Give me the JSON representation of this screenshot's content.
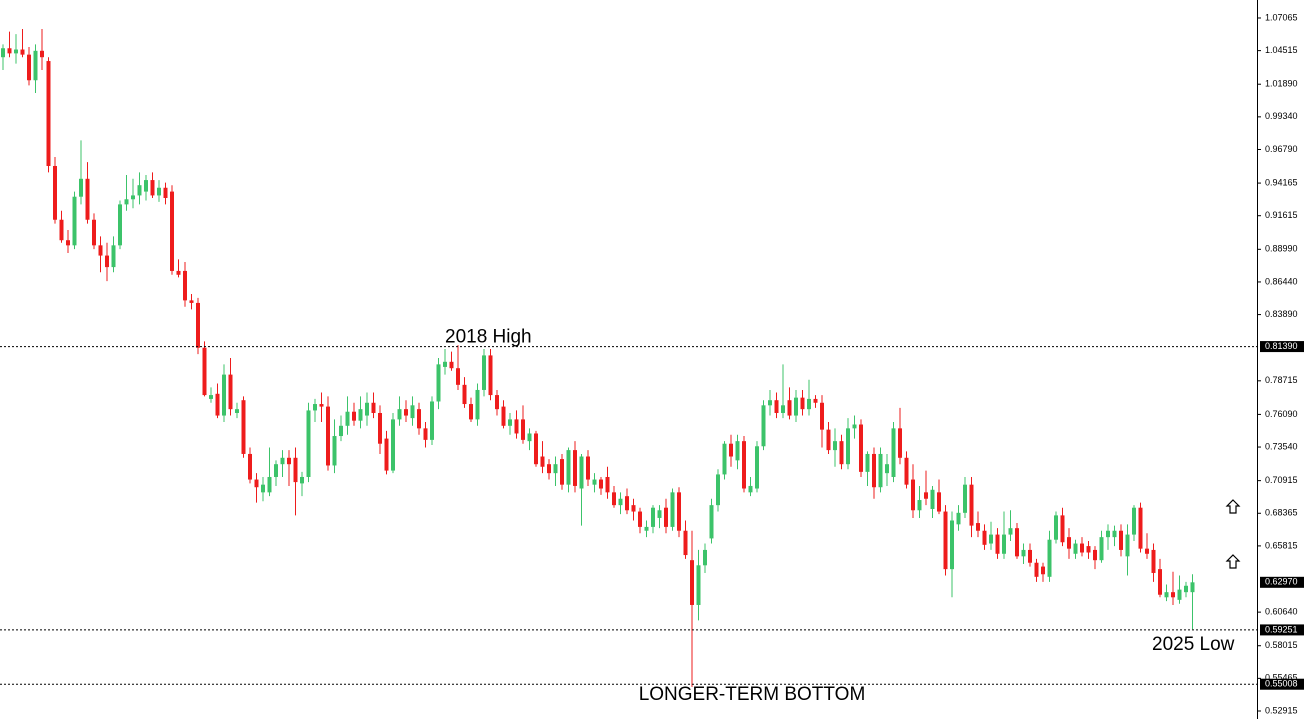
{
  "chart_data": {
    "type": "candlestick",
    "ylim": [
      0.5229,
      1.0847
    ],
    "yticks": [
      1.07065,
      1.04515,
      {
        "value": 1.0189,
        "label": "1.01890"
      },
      {
        "value": 0.9934,
        "label": "0.99340"
      },
      {
        "value": 0.9679,
        "label": "0.96790"
      },
      0.94165,
      0.91615,
      {
        "value": 0.8899,
        "label": "0.88990"
      },
      {
        "value": 0.8644,
        "label": "0.86440"
      },
      {
        "value": 0.8389,
        "label": "0.83890"
      },
      0.78715,
      {
        "value": 0.7609,
        "label": "0.76090"
      },
      {
        "value": 0.7354,
        "label": "0.73540"
      },
      0.70915,
      0.68365,
      0.65815,
      {
        "value": 0.6064,
        "label": "0.60640"
      },
      0.58015,
      0.55465,
      0.52915
    ],
    "up_color": "#3cc36a",
    "down_color": "#ee1c1c",
    "levels": [
      {
        "value": 0.8139,
        "label": "0.81390",
        "text": "2018 High"
      },
      {
        "value": 0.59251,
        "label": "0.59251",
        "text": "2025 Low"
      },
      {
        "value": 0.55008,
        "label": "0.55008",
        "text": "LONGER-TERM BOTTOM"
      }
    ],
    "last_price": {
      "value": 0.6297,
      "label": "0.62970"
    },
    "ohlc": [
      [
        1.04,
        1.05,
        1.03,
        1.047
      ],
      [
        1.047,
        1.06,
        1.04,
        1.043
      ],
      [
        1.043,
        1.058,
        1.035,
        1.046
      ],
      [
        1.046,
        1.062,
        1.04,
        1.042
      ],
      [
        1.042,
        1.048,
        1.018,
        1.022
      ],
      [
        1.022,
        1.05,
        1.012,
        1.045
      ],
      [
        1.045,
        1.062,
        1.03,
        1.04
      ],
      [
        1.037,
        1.04,
        0.95,
        0.955
      ],
      [
        0.955,
        0.962,
        0.91,
        0.913
      ],
      [
        0.913,
        0.92,
        0.895,
        0.897
      ],
      [
        0.897,
        0.905,
        0.887,
        0.893
      ],
      [
        0.893,
        0.935,
        0.89,
        0.931
      ],
      [
        0.931,
        0.975,
        0.925,
        0.945
      ],
      [
        0.945,
        0.958,
        0.91,
        0.913
      ],
      [
        0.913,
        0.918,
        0.89,
        0.893
      ],
      [
        0.893,
        0.9,
        0.872,
        0.885
      ],
      [
        0.885,
        0.895,
        0.865,
        0.876
      ],
      [
        0.876,
        0.9,
        0.872,
        0.893
      ],
      [
        0.893,
        0.928,
        0.89,
        0.925
      ],
      [
        0.925,
        0.948,
        0.92,
        0.929
      ],
      [
        0.929,
        0.945,
        0.922,
        0.932
      ],
      [
        0.932,
        0.95,
        0.925,
        0.94
      ],
      [
        0.935,
        0.948,
        0.928,
        0.944
      ],
      [
        0.944,
        0.95,
        0.93,
        0.932
      ],
      [
        0.932,
        0.944,
        0.927,
        0.938
      ],
      [
        0.938,
        0.942,
        0.925,
        0.93
      ],
      [
        0.935,
        0.94,
        0.87,
        0.873
      ],
      [
        0.873,
        0.882,
        0.868,
        0.87
      ],
      [
        0.873,
        0.88,
        0.845,
        0.85
      ],
      [
        0.85,
        0.855,
        0.843,
        0.848
      ],
      [
        0.848,
        0.852,
        0.808,
        0.813
      ],
      [
        0.813,
        0.818,
        0.775,
        0.776
      ],
      [
        0.773,
        0.782,
        0.77,
        0.776
      ],
      [
        0.777,
        0.785,
        0.758,
        0.76
      ],
      [
        0.76,
        0.8,
        0.755,
        0.792
      ],
      [
        0.792,
        0.805,
        0.76,
        0.765
      ],
      [
        0.762,
        0.77,
        0.758,
        0.765
      ],
      [
        0.772,
        0.775,
        0.727,
        0.73
      ],
      [
        0.73,
        0.735,
        0.707,
        0.71
      ],
      [
        0.71,
        0.715,
        0.692,
        0.704
      ],
      [
        0.7,
        0.712,
        0.693,
        0.706
      ],
      [
        0.7,
        0.735,
        0.697,
        0.712
      ],
      [
        0.712,
        0.725,
        0.705,
        0.722
      ],
      [
        0.722,
        0.733,
        0.712,
        0.727
      ],
      [
        0.727,
        0.733,
        0.705,
        0.722
      ],
      [
        0.727,
        0.735,
        0.682,
        0.708
      ],
      [
        0.707,
        0.716,
        0.697,
        0.712
      ],
      [
        0.712,
        0.77,
        0.708,
        0.764
      ],
      [
        0.764,
        0.773,
        0.755,
        0.769
      ],
      [
        0.769,
        0.778,
        0.755,
        0.767
      ],
      [
        0.767,
        0.775,
        0.717,
        0.721
      ],
      [
        0.721,
        0.757,
        0.715,
        0.744
      ],
      [
        0.744,
        0.76,
        0.74,
        0.752
      ],
      [
        0.752,
        0.775,
        0.745,
        0.763
      ],
      [
        0.763,
        0.77,
        0.752,
        0.756
      ],
      [
        0.756,
        0.775,
        0.75,
        0.765
      ],
      [
        0.76,
        0.778,
        0.752,
        0.77
      ],
      [
        0.77,
        0.778,
        0.758,
        0.762
      ],
      [
        0.762,
        0.768,
        0.73,
        0.738
      ],
      [
        0.742,
        0.748,
        0.714,
        0.717
      ],
      [
        0.717,
        0.762,
        0.715,
        0.757
      ],
      [
        0.757,
        0.775,
        0.752,
        0.765
      ],
      [
        0.765,
        0.772,
        0.755,
        0.76
      ],
      [
        0.758,
        0.775,
        0.752,
        0.768
      ],
      [
        0.765,
        0.77,
        0.745,
        0.75
      ],
      [
        0.75,
        0.755,
        0.735,
        0.741
      ],
      [
        0.741,
        0.775,
        0.737,
        0.771
      ],
      [
        0.771,
        0.805,
        0.765,
        0.8
      ],
      [
        0.798,
        0.812,
        0.792,
        0.802
      ],
      [
        0.802,
        0.81,
        0.795,
        0.797
      ],
      [
        0.797,
        0.815,
        0.78,
        0.784
      ],
      [
        0.784,
        0.79,
        0.766,
        0.769
      ],
      [
        0.769,
        0.774,
        0.755,
        0.757
      ],
      [
        0.757,
        0.785,
        0.752,
        0.78
      ],
      [
        0.78,
        0.812,
        0.775,
        0.807
      ],
      [
        0.807,
        0.812,
        0.772,
        0.776
      ],
      [
        0.776,
        0.78,
        0.76,
        0.765
      ],
      [
        0.767,
        0.772,
        0.75,
        0.752
      ],
      [
        0.752,
        0.762,
        0.745,
        0.757
      ],
      [
        0.757,
        0.764,
        0.742,
        0.746
      ],
      [
        0.757,
        0.768,
        0.738,
        0.741
      ],
      [
        0.74,
        0.75,
        0.733,
        0.746
      ],
      [
        0.746,
        0.748,
        0.72,
        0.722
      ],
      [
        0.728,
        0.74,
        0.715,
        0.72
      ],
      [
        0.722,
        0.726,
        0.71,
        0.715
      ],
      [
        0.715,
        0.728,
        0.705,
        0.722
      ],
      [
        0.726,
        0.73,
        0.702,
        0.706
      ],
      [
        0.706,
        0.735,
        0.7,
        0.733
      ],
      [
        0.733,
        0.74,
        0.7,
        0.705
      ],
      [
        0.703,
        0.73,
        0.674,
        0.728
      ],
      [
        0.728,
        0.733,
        0.705,
        0.71
      ],
      [
        0.706,
        0.715,
        0.7,
        0.71
      ],
      [
        0.71,
        0.712,
        0.698,
        0.703
      ],
      [
        0.712,
        0.72,
        0.695,
        0.7
      ],
      [
        0.7,
        0.705,
        0.688,
        0.69
      ],
      [
        0.69,
        0.7,
        0.683,
        0.695
      ],
      [
        0.697,
        0.703,
        0.683,
        0.686
      ],
      [
        0.69,
        0.695,
        0.678,
        0.685
      ],
      [
        0.685,
        0.688,
        0.668,
        0.673
      ],
      [
        0.67,
        0.678,
        0.665,
        0.673
      ],
      [
        0.673,
        0.69,
        0.668,
        0.688
      ],
      [
        0.68,
        0.69,
        0.672,
        0.686
      ],
      [
        0.688,
        0.695,
        0.668,
        0.673
      ],
      [
        0.673,
        0.703,
        0.67,
        0.7
      ],
      [
        0.7,
        0.704,
        0.665,
        0.67
      ],
      [
        0.67,
        0.678,
        0.648,
        0.651
      ],
      [
        0.647,
        0.67,
        0.548,
        0.612
      ],
      [
        0.612,
        0.655,
        0.6,
        0.643
      ],
      [
        0.643,
        0.66,
        0.637,
        0.655
      ],
      [
        0.664,
        0.695,
        0.66,
        0.69
      ],
      [
        0.69,
        0.718,
        0.685,
        0.714
      ],
      [
        0.714,
        0.74,
        0.71,
        0.738
      ],
      [
        0.738,
        0.745,
        0.72,
        0.728
      ],
      [
        0.725,
        0.745,
        0.718,
        0.74
      ],
      [
        0.74,
        0.744,
        0.7,
        0.703
      ],
      [
        0.7,
        0.712,
        0.697,
        0.705
      ],
      [
        0.703,
        0.74,
        0.7,
        0.736
      ],
      [
        0.736,
        0.772,
        0.733,
        0.768
      ],
      [
        0.768,
        0.78,
        0.76,
        0.772
      ],
      [
        0.772,
        0.778,
        0.758,
        0.762
      ],
      [
        0.762,
        0.8,
        0.758,
        0.768
      ],
      [
        0.772,
        0.782,
        0.757,
        0.76
      ],
      [
        0.76,
        0.78,
        0.755,
        0.774
      ],
      [
        0.774,
        0.78,
        0.76,
        0.765
      ],
      [
        0.765,
        0.788,
        0.76,
        0.773
      ],
      [
        0.773,
        0.776,
        0.766,
        0.77
      ],
      [
        0.77,
        0.776,
        0.735,
        0.749
      ],
      [
        0.749,
        0.755,
        0.73,
        0.733
      ],
      [
        0.733,
        0.75,
        0.72,
        0.74
      ],
      [
        0.74,
        0.745,
        0.718,
        0.722
      ],
      [
        0.722,
        0.758,
        0.718,
        0.75
      ],
      [
        0.75,
        0.76,
        0.742,
        0.753
      ],
      [
        0.753,
        0.757,
        0.712,
        0.716
      ],
      [
        0.716,
        0.732,
        0.705,
        0.73
      ],
      [
        0.73,
        0.735,
        0.695,
        0.704
      ],
      [
        0.704,
        0.735,
        0.7,
        0.73
      ],
      [
        0.715,
        0.73,
        0.705,
        0.722
      ],
      [
        0.712,
        0.755,
        0.708,
        0.75
      ],
      [
        0.75,
        0.766,
        0.722,
        0.727
      ],
      [
        0.727,
        0.732,
        0.703,
        0.706
      ],
      [
        0.71,
        0.722,
        0.68,
        0.686
      ],
      [
        0.686,
        0.705,
        0.68,
        0.694
      ],
      [
        0.7,
        0.717,
        0.69,
        0.695
      ],
      [
        0.687,
        0.705,
        0.68,
        0.702
      ],
      [
        0.7,
        0.71,
        0.683,
        0.685
      ],
      [
        0.685,
        0.69,
        0.635,
        0.64
      ],
      [
        0.64,
        0.685,
        0.618,
        0.678
      ],
      [
        0.675,
        0.69,
        0.67,
        0.684
      ],
      [
        0.684,
        0.712,
        0.68,
        0.706
      ],
      [
        0.706,
        0.712,
        0.665,
        0.674
      ],
      [
        0.676,
        0.685,
        0.665,
        0.67
      ],
      [
        0.67,
        0.675,
        0.655,
        0.659
      ],
      [
        0.66,
        0.677,
        0.655,
        0.667
      ],
      [
        0.667,
        0.672,
        0.648,
        0.652
      ],
      [
        0.652,
        0.685,
        0.648,
        0.667
      ],
      [
        0.667,
        0.686,
        0.662,
        0.672
      ],
      [
        0.672,
        0.676,
        0.648,
        0.65
      ],
      [
        0.65,
        0.66,
        0.644,
        0.655
      ],
      [
        0.655,
        0.66,
        0.642,
        0.645
      ],
      [
        0.645,
        0.648,
        0.63,
        0.634
      ],
      [
        0.642,
        0.645,
        0.63,
        0.636
      ],
      [
        0.634,
        0.67,
        0.63,
        0.663
      ],
      [
        0.663,
        0.685,
        0.66,
        0.682
      ],
      [
        0.682,
        0.688,
        0.658,
        0.661
      ],
      [
        0.665,
        0.672,
        0.648,
        0.656
      ],
      [
        0.652,
        0.663,
        0.648,
        0.66
      ],
      [
        0.66,
        0.665,
        0.65,
        0.653
      ],
      [
        0.658,
        0.662,
        0.648,
        0.653
      ],
      [
        0.655,
        0.658,
        0.64,
        0.647
      ],
      [
        0.647,
        0.67,
        0.645,
        0.665
      ],
      [
        0.665,
        0.675,
        0.655,
        0.67
      ],
      [
        0.665,
        0.674,
        0.658,
        0.67
      ],
      [
        0.67,
        0.675,
        0.65,
        0.655
      ],
      [
        0.65,
        0.675,
        0.635,
        0.667
      ],
      [
        0.667,
        0.69,
        0.662,
        0.688
      ],
      [
        0.688,
        0.692,
        0.653,
        0.656
      ],
      [
        0.656,
        0.668,
        0.648,
        0.652
      ],
      [
        0.655,
        0.66,
        0.63,
        0.637
      ],
      [
        0.64,
        0.648,
        0.618,
        0.62
      ],
      [
        0.618,
        0.628,
        0.615,
        0.622
      ],
      [
        0.622,
        0.638,
        0.612,
        0.618
      ],
      [
        0.616,
        0.635,
        0.613,
        0.624
      ],
      [
        0.622,
        0.63,
        0.618,
        0.627
      ],
      [
        0.622,
        0.636,
        0.593,
        0.6297
      ]
    ]
  }
}
